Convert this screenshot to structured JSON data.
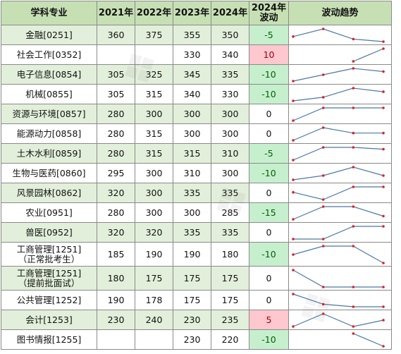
{
  "header": {
    "subject": "学科专业",
    "years": [
      "2021年",
      "2022年",
      "2023年",
      "2024年"
    ],
    "change_line1": "2024年",
    "change_line2": "波动",
    "trend": "波动趋势"
  },
  "rows": [
    {
      "subject": "金融[0251]",
      "values": [
        "360",
        "375",
        "355",
        "350"
      ],
      "change": "-5",
      "trend": [
        360,
        375,
        355,
        350
      ]
    },
    {
      "subject": "社会工作[0352]",
      "values": [
        "",
        "",
        "330",
        "340"
      ],
      "change": "10",
      "trend": [
        null,
        null,
        330,
        340
      ]
    },
    {
      "subject": "电子信息[0854]",
      "values": [
        "305",
        "325",
        "345",
        "335"
      ],
      "change": "-10",
      "trend": [
        305,
        325,
        345,
        335
      ]
    },
    {
      "subject": "机械[0855]",
      "values": [
        "305",
        "315",
        "340",
        "330"
      ],
      "change": "-10",
      "trend": [
        305,
        315,
        340,
        330
      ]
    },
    {
      "subject": "资源与环境[0857]",
      "values": [
        "280",
        "300",
        "300",
        "300"
      ],
      "change": "0",
      "trend": [
        280,
        300,
        300,
        300
      ]
    },
    {
      "subject": "能源动力[0858]",
      "values": [
        "280",
        "315",
        "300",
        "300"
      ],
      "change": "0",
      "trend": [
        280,
        315,
        300,
        300
      ]
    },
    {
      "subject": "土木水利[0859]",
      "values": [
        "280",
        "315",
        "315",
        "310"
      ],
      "change": "-5",
      "trend": [
        280,
        315,
        315,
        310
      ]
    },
    {
      "subject": "生物与医药[0860]",
      "values": [
        "295",
        "300",
        "310",
        "300"
      ],
      "change": "-10",
      "trend": [
        295,
        300,
        310,
        300
      ]
    },
    {
      "subject": "风景园林[0862]",
      "values": [
        "320",
        "300",
        "335",
        "335"
      ],
      "change": "0",
      "trend": [
        320,
        300,
        335,
        335
      ]
    },
    {
      "subject": "农业[0951]",
      "values": [
        "280",
        "300",
        "300",
        "285"
      ],
      "change": "-15",
      "trend": [
        280,
        300,
        300,
        285
      ]
    },
    {
      "subject": "兽医[0952]",
      "values": [
        "320",
        "320",
        "335",
        "335"
      ],
      "change": "0",
      "trend": [
        320,
        320,
        335,
        335
      ]
    },
    {
      "subject": "工商管理[1251]",
      "subject2": "（正常批考生）",
      "values": [
        "185",
        "190",
        "190",
        "180"
      ],
      "change": "-10",
      "trend": [
        185,
        190,
        190,
        180
      ]
    },
    {
      "subject": "工商管理[1251]",
      "subject2": "（提前批面试）",
      "values": [
        "180",
        "175",
        "175",
        "175"
      ],
      "change": "0",
      "trend": [
        180,
        175,
        175,
        175
      ]
    },
    {
      "subject": "公共管理[1252]",
      "values": [
        "190",
        "178",
        "175",
        "175"
      ],
      "change": "0",
      "trend": [
        190,
        178,
        175,
        175
      ]
    },
    {
      "subject": "会计[1253]",
      "values": [
        "230",
        "240",
        "230",
        "235"
      ],
      "change": "5",
      "trend": [
        230,
        240,
        230,
        235
      ]
    },
    {
      "subject": "图书情报[1255]",
      "values": [
        "",
        "",
        "230",
        "220"
      ],
      "change": "-10",
      "trend": [
        null,
        null,
        230,
        220
      ]
    }
  ],
  "colors": {
    "header_bg": "#c6e0b4",
    "row_alt_bg": "#e2efda",
    "neg_bg": "#c6efce",
    "neg_text": "#006100",
    "pos_bg": "#ffc7ce",
    "pos_text": "#9c0006",
    "spark_line": "#4a78a8",
    "spark_marker": "#e02020"
  }
}
